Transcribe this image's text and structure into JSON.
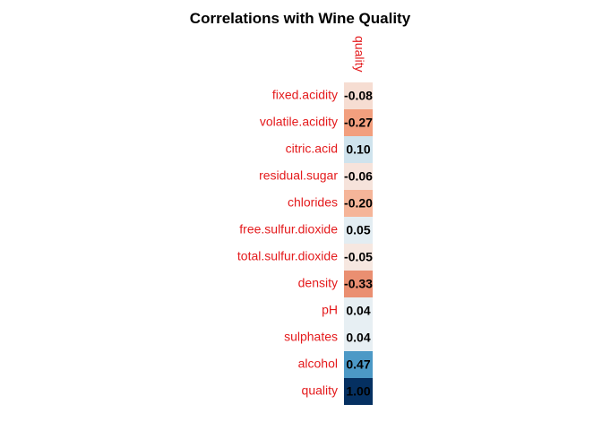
{
  "chart_data": {
    "type": "heatmap",
    "title": "Correlations with Wine Quality",
    "columns": [
      "quality"
    ],
    "rows": [
      "fixed.acidity",
      "volatile.acidity",
      "citric.acid",
      "residual.sugar",
      "chlorides",
      "free.sulfur.dioxide",
      "total.sulfur.dioxide",
      "density",
      "pH",
      "sulphates",
      "alcohol",
      "quality"
    ],
    "values": [
      -0.08,
      -0.27,
      0.1,
      -0.06,
      -0.2,
      0.05,
      -0.05,
      -0.33,
      0.04,
      0.04,
      0.47,
      1.0
    ],
    "value_labels": [
      "-0.08",
      "-0.27",
      "0.10",
      "-0.06",
      "-0.20",
      "0.05",
      "-0.05",
      "-0.33",
      "0.04",
      "0.04",
      "0.47",
      "1.00"
    ],
    "color_range": [
      -1,
      1
    ],
    "label_color": "#e41a1c",
    "value_label_color": "#000000",
    "legend": "none",
    "grid": false
  }
}
